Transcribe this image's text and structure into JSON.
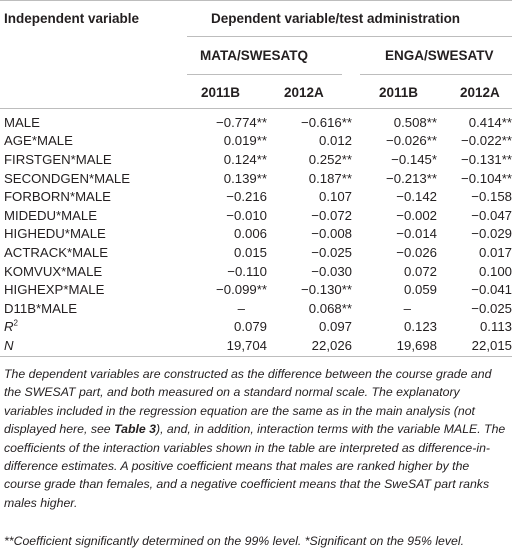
{
  "header": {
    "independent_variable": "Independent variable",
    "dependent_variable": "Dependent variable/test administration",
    "groups": [
      "MATA/SWESATQ",
      "ENGA/SWESATV"
    ],
    "years": [
      "2011B",
      "2012A",
      "2011B",
      "2012A"
    ]
  },
  "rows": [
    {
      "label": "MALE",
      "values": [
        "−0.774**",
        "−0.616**",
        "0.508**",
        "0.414**"
      ]
    },
    {
      "label": "AGE*MALE",
      "values": [
        "0.019**",
        "0.012",
        "−0.026**",
        "−0.022**"
      ]
    },
    {
      "label": "FIRSTGEN*MALE",
      "values": [
        "0.124**",
        "0.252**",
        "−0.145*",
        "−0.131**"
      ]
    },
    {
      "label": "SECONDGEN*MALE",
      "values": [
        "0.139**",
        "0.187**",
        "−0.213**",
        "−0.104**"
      ]
    },
    {
      "label": "FORBORN*MALE",
      "values": [
        "−0.216",
        "0.107",
        "−0.142",
        "−0.158"
      ]
    },
    {
      "label": "MIDEDU*MALE",
      "values": [
        "−0.010",
        "−0.072",
        "−0.002",
        "−0.047"
      ]
    },
    {
      "label": "HIGHEDU*MALE",
      "values": [
        "0.006",
        "−0.008",
        "−0.014",
        "−0.029"
      ]
    },
    {
      "label": "ACTRACK*MALE",
      "values": [
        "0.015",
        "−0.025",
        "−0.026",
        "0.017"
      ]
    },
    {
      "label": "KOMVUX*MALE",
      "values": [
        "−0.110",
        "−0.030",
        "0.072",
        "0.100"
      ]
    },
    {
      "label": "HIGHEXP*MALE",
      "values": [
        "−0.099**",
        "−0.130**",
        "0.059",
        "−0.041"
      ]
    },
    {
      "label": "D11B*MALE",
      "values": [
        "–",
        "0.068**",
        "–",
        "−0.025"
      ]
    },
    {
      "label_base": "R",
      "label_sup": "2",
      "values": [
        "0.079",
        "0.097",
        "0.123",
        "0.113"
      ]
    },
    {
      "label": "N",
      "values": [
        "19,704",
        "22,026",
        "19,698",
        "22,015"
      ]
    }
  ],
  "notes": {
    "para_before_ref": "The dependent variables are constructed as the difference between the course grade and the SWESAT part, and both measured on a standard normal scale. The explanatory variables included in the regression equation are the same as in the main analysis (not displayed here, see ",
    "ref": "Table 3",
    "para_after_ref": "), and, in addition, interaction terms with the variable MALE. The coefficients of the interaction variables shown in the table are interpreted as difference-in-difference estimates. A positive coefficient means that males are ranked higher by the course grade than females, and a negative coefficient means that the SweSAT part ranks males higher.",
    "significance": "**Coefficient significantly determined on the 99% level. *Significant on the 95% level."
  }
}
